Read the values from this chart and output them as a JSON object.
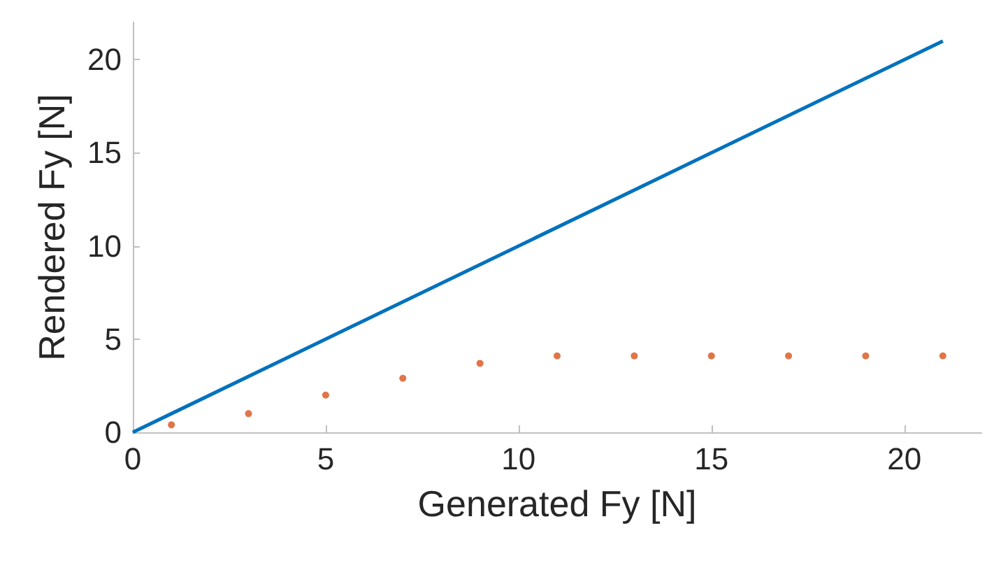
{
  "chart_data": {
    "type": "line",
    "xlabel": "Generated Fy [N]",
    "ylabel": "Rendered Fy [N]",
    "series": [
      {
        "color": "#0072bd",
        "x": [
          0,
          21
        ],
        "values": [
          0,
          21
        ],
        "marker": "none"
      },
      {
        "type": "scatter",
        "color": "#d95319",
        "x": [
          1,
          3,
          5,
          7,
          9,
          11,
          13,
          15,
          17,
          19,
          21
        ],
        "values": [
          0.4,
          1.0,
          2.0,
          2.9,
          3.7,
          4.1,
          4.1,
          4.1,
          4.1,
          4.1,
          4.1
        ]
      }
    ],
    "xlim": [
      0,
      22
    ],
    "ylim": [
      0,
      22
    ],
    "xticks": [
      0,
      5,
      10,
      15,
      20
    ],
    "yticks": [
      0,
      5,
      10,
      15,
      20
    ],
    "grid": false
  }
}
